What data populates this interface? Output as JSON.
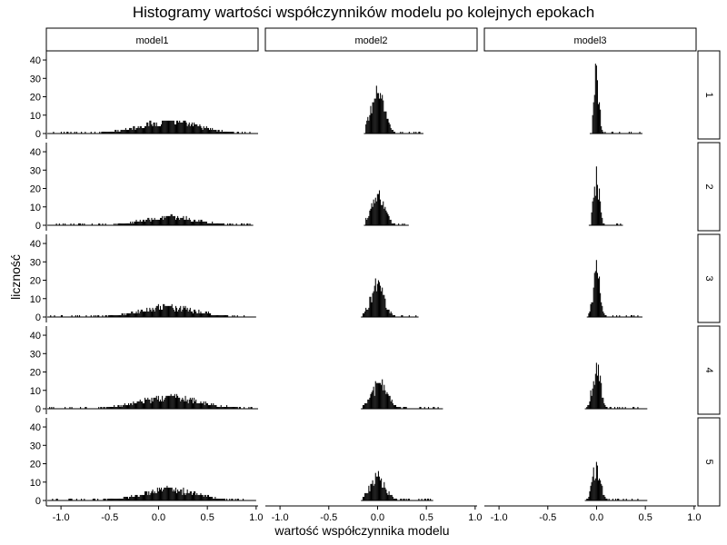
{
  "chart_data": {
    "type": "histogram",
    "title": "Histogramy wartości współczynników modelu po kolejnych epokach",
    "xlabel": "wartość współczynnika modelu",
    "ylabel": "liczność",
    "columns": [
      "model1",
      "model2",
      "model3"
    ],
    "rows": [
      "1",
      "2",
      "3",
      "4",
      "5"
    ],
    "xlim": [
      -1.15,
      1.02
    ],
    "ylim": [
      0,
      42
    ],
    "x_ticks": [
      -1.0,
      -0.5,
      0.0,
      0.5,
      1.0
    ],
    "x_tick_labels": [
      "-1.0",
      "-0.5",
      "0.0",
      "0.5",
      "1.0"
    ],
    "y_ticks": [
      0,
      10,
      20,
      30,
      40
    ],
    "y_tick_labels": [
      "0",
      "10",
      "20",
      "30",
      "40"
    ],
    "grid": false,
    "bar_color": "#000000",
    "panels": [
      {
        "model": "model1",
        "epoch": "1",
        "center": 0.1,
        "spread": 0.32,
        "peak": 7,
        "range": [
          -1.12,
          1.0
        ]
      },
      {
        "model": "model2",
        "epoch": "1",
        "center": 0.0,
        "spread": 0.07,
        "peak": 23,
        "range": [
          -0.12,
          0.45
        ]
      },
      {
        "model": "model3",
        "epoch": "1",
        "center": 0.0,
        "spread": 0.025,
        "peak": 39,
        "range": [
          -0.05,
          0.45
        ]
      },
      {
        "model": "model1",
        "epoch": "2",
        "center": 0.12,
        "spread": 0.28,
        "peak": 5,
        "range": [
          -1.12,
          0.95
        ]
      },
      {
        "model": "model2",
        "epoch": "2",
        "center": 0.0,
        "spread": 0.07,
        "peak": 18,
        "range": [
          -0.12,
          0.3
        ]
      },
      {
        "model": "model3",
        "epoch": "2",
        "center": 0.0,
        "spread": 0.03,
        "peak": 28,
        "range": [
          -0.06,
          0.25
        ]
      },
      {
        "model": "model1",
        "epoch": "3",
        "center": 0.1,
        "spread": 0.3,
        "peak": 6,
        "range": [
          -1.12,
          0.98
        ]
      },
      {
        "model": "model2",
        "epoch": "3",
        "center": 0.0,
        "spread": 0.07,
        "peak": 19,
        "range": [
          -0.15,
          0.4
        ]
      },
      {
        "model": "model3",
        "epoch": "3",
        "center": 0.0,
        "spread": 0.035,
        "peak": 27,
        "range": [
          -0.08,
          0.45
        ]
      },
      {
        "model": "model1",
        "epoch": "4",
        "center": 0.12,
        "spread": 0.32,
        "peak": 7,
        "range": [
          -1.12,
          1.0
        ]
      },
      {
        "model": "model2",
        "epoch": "4",
        "center": 0.02,
        "spread": 0.08,
        "peak": 15,
        "range": [
          -0.15,
          0.65
        ]
      },
      {
        "model": "model3",
        "epoch": "4",
        "center": 0.0,
        "spread": 0.04,
        "peak": 26,
        "range": [
          -0.1,
          0.5
        ]
      },
      {
        "model": "model1",
        "epoch": "5",
        "center": 0.1,
        "spread": 0.28,
        "peak": 7,
        "range": [
          -1.12,
          0.98
        ]
      },
      {
        "model": "model2",
        "epoch": "5",
        "center": 0.0,
        "spread": 0.08,
        "peak": 14,
        "range": [
          -0.15,
          0.55
        ]
      },
      {
        "model": "model3",
        "epoch": "5",
        "center": 0.0,
        "spread": 0.04,
        "peak": 22,
        "range": [
          -0.1,
          0.5
        ]
      }
    ]
  }
}
